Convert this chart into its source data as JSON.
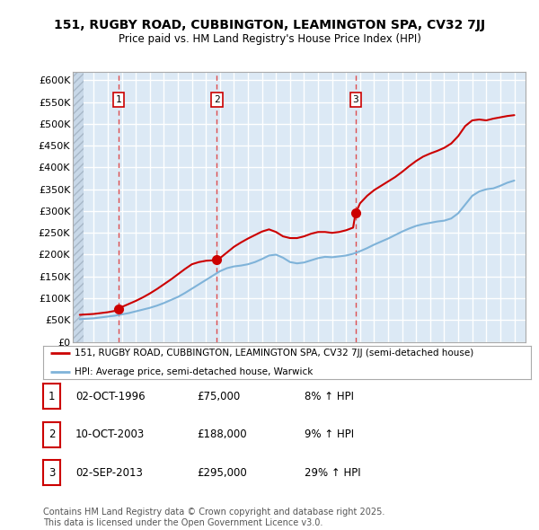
{
  "title": "151, RUGBY ROAD, CUBBINGTON, LEAMINGTON SPA, CV32 7JJ",
  "subtitle": "Price paid vs. HM Land Registry's House Price Index (HPI)",
  "background_color": "#dce9f5",
  "plot_bg_color": "#dce9f5",
  "grid_color": "#ffffff",
  "sale_color": "#cc0000",
  "hpi_color": "#7fb3d9",
  "ylim": [
    0,
    620000
  ],
  "yticks": [
    0,
    50000,
    100000,
    150000,
    200000,
    250000,
    300000,
    350000,
    400000,
    450000,
    500000,
    550000,
    600000
  ],
  "ytick_labels": [
    "£0",
    "£50K",
    "£100K",
    "£150K",
    "£200K",
    "£250K",
    "£300K",
    "£350K",
    "£400K",
    "£450K",
    "£500K",
    "£550K",
    "£600K"
  ],
  "xlim_start": 1993.5,
  "xlim_end": 2025.8,
  "sale_dates": [
    1996.75,
    2003.78,
    2013.67
  ],
  "sale_prices": [
    75000,
    188000,
    295000
  ],
  "sale_labels": [
    "1",
    "2",
    "3"
  ],
  "annotation_rows": [
    {
      "label": "1",
      "date": "02-OCT-1996",
      "price": "£75,000",
      "pct": "8% ↑ HPI"
    },
    {
      "label": "2",
      "date": "10-OCT-2003",
      "price": "£188,000",
      "pct": "9% ↑ HPI"
    },
    {
      "label": "3",
      "date": "02-SEP-2013",
      "price": "£295,000",
      "pct": "29% ↑ HPI"
    }
  ],
  "legend_line1": "151, RUGBY ROAD, CUBBINGTON, LEAMINGTON SPA, CV32 7JJ (semi-detached house)",
  "legend_line2": "HPI: Average price, semi-detached house, Warwick",
  "footer": "Contains HM Land Registry data © Crown copyright and database right 2025.\nThis data is licensed under the Open Government Licence v3.0.",
  "hpi_years": [
    1994.0,
    1994.5,
    1995.0,
    1995.5,
    1996.0,
    1996.5,
    1997.0,
    1997.5,
    1998.0,
    1998.5,
    1999.0,
    1999.5,
    2000.0,
    2000.5,
    2001.0,
    2001.5,
    2002.0,
    2002.5,
    2003.0,
    2003.5,
    2004.0,
    2004.5,
    2005.0,
    2005.5,
    2006.0,
    2006.5,
    2007.0,
    2007.5,
    2008.0,
    2008.5,
    2009.0,
    2009.5,
    2010.0,
    2010.5,
    2011.0,
    2011.5,
    2012.0,
    2012.5,
    2013.0,
    2013.5,
    2014.0,
    2014.5,
    2015.0,
    2015.5,
    2016.0,
    2016.5,
    2017.0,
    2017.5,
    2018.0,
    2018.5,
    2019.0,
    2019.5,
    2020.0,
    2020.5,
    2021.0,
    2021.5,
    2022.0,
    2022.5,
    2023.0,
    2023.5,
    2024.0,
    2024.5,
    2025.0
  ],
  "hpi_values": [
    52000,
    53000,
    54000,
    56000,
    58000,
    60000,
    63000,
    66000,
    70000,
    74000,
    78000,
    83000,
    89000,
    96000,
    103000,
    112000,
    122000,
    132000,
    142000,
    152000,
    162000,
    169000,
    173000,
    175000,
    178000,
    183000,
    190000,
    198000,
    200000,
    193000,
    183000,
    180000,
    182000,
    187000,
    192000,
    195000,
    194000,
    196000,
    198000,
    202000,
    208000,
    215000,
    223000,
    230000,
    237000,
    245000,
    253000,
    260000,
    266000,
    270000,
    273000,
    276000,
    278000,
    283000,
    295000,
    315000,
    335000,
    345000,
    350000,
    352000,
    358000,
    365000,
    370000
  ],
  "sale_line_years": [
    1994.0,
    1994.5,
    1995.0,
    1995.5,
    1996.0,
    1996.5,
    1996.75,
    1997.0,
    1997.5,
    1998.0,
    1998.5,
    1999.0,
    1999.5,
    2000.0,
    2000.5,
    2001.0,
    2001.5,
    2002.0,
    2002.5,
    2003.0,
    2003.5,
    2003.78,
    2004.0,
    2004.5,
    2005.0,
    2005.5,
    2006.0,
    2006.5,
    2007.0,
    2007.5,
    2008.0,
    2008.5,
    2009.0,
    2009.5,
    2010.0,
    2010.5,
    2011.0,
    2011.5,
    2012.0,
    2012.5,
    2013.0,
    2013.5,
    2013.67,
    2014.0,
    2014.5,
    2015.0,
    2015.5,
    2016.0,
    2016.5,
    2017.0,
    2017.5,
    2018.0,
    2018.5,
    2019.0,
    2019.5,
    2020.0,
    2020.5,
    2021.0,
    2021.5,
    2022.0,
    2022.5,
    2023.0,
    2023.5,
    2024.0,
    2024.5,
    2025.0
  ],
  "sale_line_values": [
    62000,
    63000,
    64000,
    66000,
    68000,
    71000,
    75000,
    80000,
    87000,
    94000,
    102000,
    111000,
    121000,
    132000,
    143000,
    155000,
    167000,
    178000,
    183000,
    186000,
    187000,
    188000,
    192000,
    205000,
    218000,
    228000,
    237000,
    245000,
    253000,
    258000,
    252000,
    242000,
    238000,
    238000,
    242000,
    248000,
    252000,
    252000,
    250000,
    252000,
    256000,
    262000,
    295000,
    318000,
    335000,
    348000,
    358000,
    368000,
    378000,
    390000,
    403000,
    415000,
    425000,
    432000,
    438000,
    445000,
    455000,
    472000,
    495000,
    508000,
    510000,
    508000,
    512000,
    515000,
    518000,
    520000
  ]
}
